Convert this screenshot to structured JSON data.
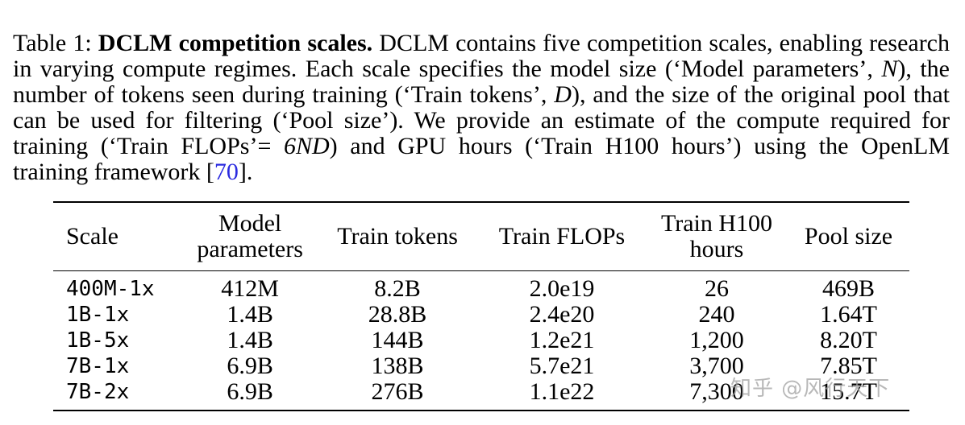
{
  "caption": {
    "label": "Table 1: ",
    "bold_title": "DCLM competition scales.",
    "part1": " DCLM contains five competition scales, enabling research in varying compute regimes. Each scale specifies the model size (‘Model parameters’, ",
    "var_n": "N",
    "part2": "), the number of tokens seen during training (‘Train tokens’, ",
    "var_d": "D",
    "part3": "), and the size of the original pool that can be used for filtering (‘Pool size’). We provide an estimate of the compute required for training (‘Train FLOPs’= ",
    "formula": "6ND",
    "part4": ") and GPU hours (‘Train H100 hours’) using the OpenLM training framework [",
    "citation": "70",
    "part5": "]."
  },
  "table": {
    "headers": [
      "Scale",
      "Model parameters",
      "Train tokens",
      "Train FLOPs",
      "Train H100 hours",
      "Pool size"
    ],
    "rows": [
      [
        "400M-1x",
        "412M",
        "8.2B",
        "2.0e19",
        "26",
        "469B"
      ],
      [
        "1B-1x",
        "1.4B",
        "28.8B",
        "2.4e20",
        "240",
        "1.64T"
      ],
      [
        "1B-5x",
        "1.4B",
        "144B",
        "1.2e21",
        "1,200",
        "8.20T"
      ],
      [
        "7B-1x",
        "6.9B",
        "138B",
        "5.7e21",
        "3,700",
        "7.85T"
      ],
      [
        "7B-2x",
        "6.9B",
        "276B",
        "1.1e22",
        "7,300",
        "15.7T"
      ]
    ]
  },
  "watermark": "知乎 @风行天下"
}
